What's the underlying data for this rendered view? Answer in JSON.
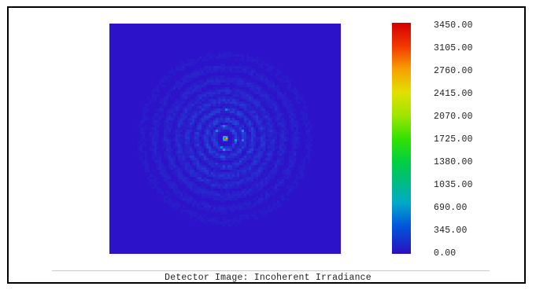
{
  "chart_data": {
    "type": "heatmap",
    "title": "Detector Image: Incoherent Irradiance",
    "colorbar": {
      "min": 0,
      "max": 3450,
      "ticks": [
        "3450.00",
        "3105.00",
        "2760.00",
        "2415.00",
        "2070.00",
        "1725.00",
        "1380.00",
        "1035.00",
        "690.00",
        "345.00",
        "0.00"
      ],
      "colors": [
        "#2b0fbf",
        "#0055dd",
        "#00a9c8",
        "#00b98a",
        "#00d040",
        "#35e200",
        "#9fe500",
        "#e2e000",
        "#f6a000",
        "#f43600",
        "#d20000"
      ]
    },
    "background_value": 0,
    "peak_value": 3450,
    "pattern": "central bright spot surrounded by faint concentric rings"
  }
}
